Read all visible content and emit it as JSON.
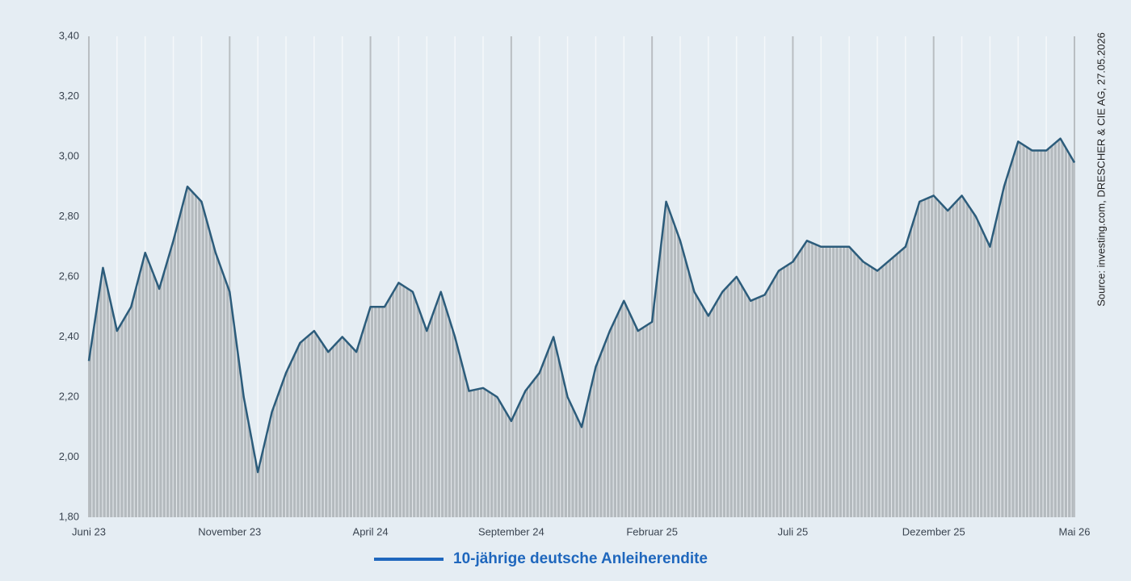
{
  "chart_data": {
    "type": "line",
    "categories": [
      "Juni 23",
      null,
      null,
      null,
      null,
      null,
      null,
      null,
      null,
      null,
      "November 23",
      null,
      null,
      null,
      null,
      null,
      null,
      null,
      null,
      null,
      "April 24",
      null,
      null,
      null,
      null,
      null,
      null,
      null,
      null,
      null,
      "September 24",
      null,
      null,
      null,
      null,
      null,
      null,
      null,
      null,
      null,
      "Februar 25",
      null,
      null,
      null,
      null,
      null,
      null,
      null,
      null,
      null,
      "Juli 25",
      null,
      null,
      null,
      null,
      null,
      null,
      null,
      null,
      null,
      "Dezember 25",
      null,
      null,
      null,
      null,
      null,
      null,
      null,
      null,
      null,
      "Mai 26"
    ],
    "series": [
      {
        "name": "10-jährige deutsche Anleiherendite",
        "color": "#1f67bd",
        "values": [
          2.32,
          2.63,
          2.42,
          2.5,
          2.68,
          2.56,
          2.72,
          2.9,
          2.85,
          2.68,
          2.55,
          2.2,
          1.95,
          2.15,
          2.28,
          2.38,
          2.42,
          2.35,
          2.4,
          2.35,
          2.5,
          2.5,
          2.58,
          2.55,
          2.42,
          2.55,
          2.4,
          2.22,
          2.23,
          2.2,
          2.12,
          2.22,
          2.28,
          2.4,
          2.2,
          2.1,
          2.3,
          2.42,
          2.52,
          2.42,
          2.45,
          2.85,
          2.72,
          2.55,
          2.47,
          2.55,
          2.6,
          2.52,
          2.54,
          2.62,
          2.65,
          2.72,
          2.7,
          2.7,
          2.7,
          2.65,
          2.62,
          2.66,
          2.7,
          2.85,
          2.87,
          2.82,
          2.87,
          2.8,
          2.7,
          2.9,
          3.05,
          3.02,
          3.02,
          3.06,
          2.98
        ]
      }
    ],
    "line_color": "#2c5c7b",
    "area_color": "#b4babe",
    "ylim": [
      1.8,
      3.4
    ],
    "yticks": [
      {
        "value": 1.8,
        "label": "1,80"
      },
      {
        "value": 2.0,
        "label": "2,00"
      },
      {
        "value": 2.2,
        "label": "2,20"
      },
      {
        "value": 2.4,
        "label": "2,40"
      },
      {
        "value": 2.6,
        "label": "2,60"
      },
      {
        "value": 2.8,
        "label": "2,80"
      },
      {
        "value": 3.0,
        "label": "3,00"
      },
      {
        "value": 3.2,
        "label": "3,20"
      },
      {
        "value": 3.4,
        "label": "3,40"
      }
    ],
    "source": "Source: investing.com, DRESCHER & CIE AG, 27.05.2026",
    "legend": "bottom"
  }
}
